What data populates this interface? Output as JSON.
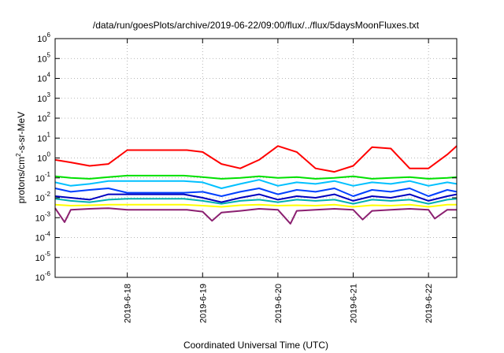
{
  "chart_data": {
    "type": "line",
    "title": "/data/run/goesPlots/archive/2019-06-22/09:00/flux/../flux/5daysMoonFluxes.txt",
    "xlabel": "Coordinated Universal Time (UTC)",
    "ylabel": {
      "base": "protons/cm",
      "sup": "2",
      "rest": "-s-sr-MeV"
    },
    "y_scale": "log",
    "ylim": [
      1e-06,
      1000000.0
    ],
    "y_ticks": [
      {
        "value": 1e-06,
        "base": "10",
        "exp": "-6"
      },
      {
        "value": 1e-05,
        "base": "10",
        "exp": "-5"
      },
      {
        "value": 0.0001,
        "base": "10",
        "exp": "-4"
      },
      {
        "value": 0.001,
        "base": "10",
        "exp": "-3"
      },
      {
        "value": 0.01,
        "base": "10",
        "exp": "-2"
      },
      {
        "value": 0.1,
        "base": "10",
        "exp": "-1"
      },
      {
        "value": 1,
        "base": "10",
        "exp": "0"
      },
      {
        "value": 10,
        "base": "10",
        "exp": "1"
      },
      {
        "value": 100,
        "base": "10",
        "exp": "2"
      },
      {
        "value": 1000,
        "base": "10",
        "exp": "3"
      },
      {
        "value": 10000,
        "base": "10",
        "exp": "4"
      },
      {
        "value": 100000,
        "base": "10",
        "exp": "5"
      },
      {
        "value": 1000000,
        "base": "10",
        "exp": "6"
      }
    ],
    "xlim": [
      "2019-06-17T01:00",
      "2019-06-22T09:00"
    ],
    "x_ticks": [
      {
        "value": "2019-06-18",
        "label": "2019-6-18"
      },
      {
        "value": "2019-06-19",
        "label": "2019-6-19"
      },
      {
        "value": "2019-06-20",
        "label": "2019-6-20"
      },
      {
        "value": "2019-06-21",
        "label": "2019-6-21"
      },
      {
        "value": "2019-06-22",
        "label": "2019-6-22"
      }
    ],
    "grid": true,
    "series": [
      {
        "color": "#ff0000",
        "x": [
          "2019-06-17T01:00",
          "2019-06-17T06:00",
          "2019-06-17T12:00",
          "2019-06-17T18:00",
          "2019-06-18T00:00",
          "2019-06-18T12:00",
          "2019-06-18T19:00",
          "2019-06-19T00:00",
          "2019-06-19T06:00",
          "2019-06-19T12:00",
          "2019-06-19T18:00",
          "2019-06-20T00:00",
          "2019-06-20T06:00",
          "2019-06-20T12:00",
          "2019-06-20T18:00",
          "2019-06-21T00:00",
          "2019-06-21T06:00",
          "2019-06-21T12:00",
          "2019-06-21T18:00",
          "2019-06-22T00:00",
          "2019-06-22T06:00",
          "2019-06-22T09:00"
        ],
        "y": [
          0.8,
          0.6,
          0.4,
          0.5,
          2.5,
          2.5,
          2.5,
          2.0,
          0.5,
          0.3,
          0.8,
          4.0,
          2.0,
          0.3,
          0.2,
          0.4,
          3.5,
          3.0,
          0.3,
          0.3,
          1.5,
          4.0
        ]
      },
      {
        "color": "#00e000",
        "x": [
          "2019-06-17T01:00",
          "2019-06-17T06:00",
          "2019-06-17T12:00",
          "2019-06-17T18:00",
          "2019-06-18T00:00",
          "2019-06-18T12:00",
          "2019-06-18T18:00",
          "2019-06-19T00:00",
          "2019-06-19T06:00",
          "2019-06-19T12:00",
          "2019-06-19T18:00",
          "2019-06-20T00:00",
          "2019-06-20T06:00",
          "2019-06-20T12:00",
          "2019-06-20T18:00",
          "2019-06-21T00:00",
          "2019-06-21T06:00",
          "2019-06-21T12:00",
          "2019-06-21T18:00",
          "2019-06-22T00:00",
          "2019-06-22T06:00",
          "2019-06-22T09:00"
        ],
        "y": [
          0.12,
          0.1,
          0.09,
          0.11,
          0.13,
          0.13,
          0.13,
          0.11,
          0.09,
          0.1,
          0.12,
          0.1,
          0.11,
          0.09,
          0.1,
          0.12,
          0.09,
          0.1,
          0.11,
          0.09,
          0.1,
          0.11
        ]
      },
      {
        "color": "#00c0ff",
        "x": [
          "2019-06-17T01:00",
          "2019-06-17T06:00",
          "2019-06-17T12:00",
          "2019-06-17T18:00",
          "2019-06-18T00:00",
          "2019-06-18T12:00",
          "2019-06-18T18:00",
          "2019-06-19T00:00",
          "2019-06-19T06:00",
          "2019-06-19T12:00",
          "2019-06-19T18:00",
          "2019-06-20T00:00",
          "2019-06-20T06:00",
          "2019-06-20T12:00",
          "2019-06-20T18:00",
          "2019-06-21T00:00",
          "2019-06-21T06:00",
          "2019-06-21T12:00",
          "2019-06-21T18:00",
          "2019-06-22T00:00",
          "2019-06-22T06:00",
          "2019-06-22T09:00"
        ],
        "y": [
          0.06,
          0.04,
          0.05,
          0.07,
          0.07,
          0.07,
          0.07,
          0.06,
          0.03,
          0.05,
          0.08,
          0.04,
          0.06,
          0.05,
          0.07,
          0.04,
          0.06,
          0.05,
          0.07,
          0.04,
          0.06,
          0.05
        ]
      },
      {
        "color": "#0040ff",
        "x": [
          "2019-06-17T01:00",
          "2019-06-17T06:00",
          "2019-06-17T12:00",
          "2019-06-17T18:00",
          "2019-06-18T00:00",
          "2019-06-18T12:00",
          "2019-06-18T18:00",
          "2019-06-19T00:00",
          "2019-06-19T06:00",
          "2019-06-19T12:00",
          "2019-06-19T18:00",
          "2019-06-20T00:00",
          "2019-06-20T06:00",
          "2019-06-20T12:00",
          "2019-06-20T18:00",
          "2019-06-21T00:00",
          "2019-06-21T06:00",
          "2019-06-21T12:00",
          "2019-06-21T18:00",
          "2019-06-22T00:00",
          "2019-06-22T06:00",
          "2019-06-22T09:00"
        ],
        "y": [
          0.03,
          0.02,
          0.025,
          0.03,
          0.018,
          0.018,
          0.018,
          0.02,
          0.012,
          0.02,
          0.03,
          0.015,
          0.025,
          0.02,
          0.03,
          0.012,
          0.025,
          0.02,
          0.03,
          0.012,
          0.025,
          0.02
        ]
      },
      {
        "color": "#0000c0",
        "x": [
          "2019-06-17T01:00",
          "2019-06-17T06:00",
          "2019-06-17T12:00",
          "2019-06-17T18:00",
          "2019-06-18T00:00",
          "2019-06-18T12:00",
          "2019-06-18T18:00",
          "2019-06-19T00:00",
          "2019-06-19T06:00",
          "2019-06-19T12:00",
          "2019-06-19T18:00",
          "2019-06-20T00:00",
          "2019-06-20T06:00",
          "2019-06-20T12:00",
          "2019-06-20T18:00",
          "2019-06-21T00:00",
          "2019-06-21T06:00",
          "2019-06-21T12:00",
          "2019-06-21T18:00",
          "2019-06-22T00:00",
          "2019-06-22T06:00",
          "2019-06-22T09:00"
        ],
        "y": [
          0.012,
          0.01,
          0.008,
          0.015,
          0.015,
          0.015,
          0.015,
          0.01,
          0.006,
          0.01,
          0.015,
          0.008,
          0.012,
          0.01,
          0.015,
          0.007,
          0.012,
          0.01,
          0.015,
          0.007,
          0.012,
          0.015
        ]
      },
      {
        "color": "#00b0b0",
        "x": [
          "2019-06-17T01:00",
          "2019-06-17T06:00",
          "2019-06-17T12:00",
          "2019-06-17T18:00",
          "2019-06-18T00:00",
          "2019-06-18T12:00",
          "2019-06-18T18:00",
          "2019-06-19T00:00",
          "2019-06-19T06:00",
          "2019-06-19T12:00",
          "2019-06-19T18:00",
          "2019-06-20T00:00",
          "2019-06-20T06:00",
          "2019-06-20T12:00",
          "2019-06-20T18:00",
          "2019-06-21T00:00",
          "2019-06-21T06:00",
          "2019-06-21T12:00",
          "2019-06-21T18:00",
          "2019-06-22T00:00",
          "2019-06-22T06:00",
          "2019-06-22T09:00"
        ],
        "y": [
          0.009,
          0.007,
          0.006,
          0.008,
          0.009,
          0.009,
          0.009,
          0.007,
          0.005,
          0.007,
          0.008,
          0.006,
          0.008,
          0.007,
          0.008,
          0.005,
          0.008,
          0.007,
          0.008,
          0.005,
          0.008,
          0.009
        ]
      },
      {
        "color": "#ffff00",
        "x": [
          "2019-06-17T01:00",
          "2019-06-17T06:00",
          "2019-06-17T12:00",
          "2019-06-17T18:00",
          "2019-06-18T00:00",
          "2019-06-18T12:00",
          "2019-06-18T18:00",
          "2019-06-19T00:00",
          "2019-06-19T06:00",
          "2019-06-19T12:00",
          "2019-06-19T18:00",
          "2019-06-20T00:00",
          "2019-06-20T06:00",
          "2019-06-20T12:00",
          "2019-06-20T18:00",
          "2019-06-21T00:00",
          "2019-06-21T06:00",
          "2019-06-21T12:00",
          "2019-06-21T18:00",
          "2019-06-22T00:00",
          "2019-06-22T06:00",
          "2019-06-22T09:00"
        ],
        "y": [
          0.0045,
          0.004,
          0.0042,
          0.0045,
          0.0045,
          0.0045,
          0.0045,
          0.004,
          0.0035,
          0.0042,
          0.0045,
          0.004,
          0.0042,
          0.004,
          0.0045,
          0.0035,
          0.0042,
          0.004,
          0.0045,
          0.0035,
          0.0045,
          0.0045
        ]
      },
      {
        "color": "#8b2070",
        "x": [
          "2019-06-17T01:00",
          "2019-06-17T04:00",
          "2019-06-17T06:00",
          "2019-06-17T12:00",
          "2019-06-17T18:00",
          "2019-06-18T00:00",
          "2019-06-18T12:00",
          "2019-06-18T19:00",
          "2019-06-19T00:00",
          "2019-06-19T03:00",
          "2019-06-19T06:00",
          "2019-06-19T12:00",
          "2019-06-19T18:00",
          "2019-06-20T00:00",
          "2019-06-20T04:00",
          "2019-06-20T06:00",
          "2019-06-20T12:00",
          "2019-06-20T18:00",
          "2019-06-21T00:00",
          "2019-06-21T03:00",
          "2019-06-21T06:00",
          "2019-06-21T12:00",
          "2019-06-21T18:00",
          "2019-06-22T00:00",
          "2019-06-22T02:00",
          "2019-06-22T06:00",
          "2019-06-22T09:00"
        ],
        "y": [
          0.003,
          0.0006,
          0.0025,
          0.0028,
          0.003,
          0.0025,
          0.0025,
          0.0025,
          0.002,
          0.0007,
          0.0018,
          0.0022,
          0.0028,
          0.0025,
          0.0005,
          0.0022,
          0.0025,
          0.0028,
          0.0025,
          0.0008,
          0.0022,
          0.0025,
          0.0028,
          0.0025,
          0.0009,
          0.0025,
          0.0025
        ]
      }
    ]
  }
}
